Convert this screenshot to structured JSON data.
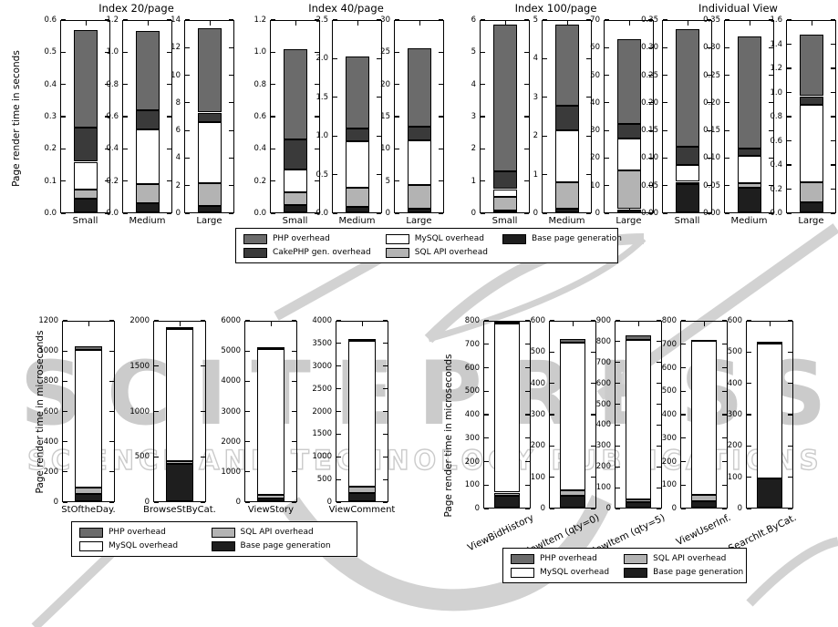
{
  "watermark": {
    "line1": "SCITEPRESS",
    "line2": "SCIENCE AND TECHNOLOGY PUBLICATIONS"
  },
  "colors": {
    "php": "#6b6b6b",
    "cake": "#3a3a3a",
    "mysql": "#ffffff",
    "sqlapi": "#b3b3b3",
    "base": "#1e1e1e",
    "axis": "#000000",
    "watermark": "#cbcbcb"
  },
  "series_labels": {
    "php": "PHP overhead",
    "cake": "CakePHP gen. overhead",
    "mysql": "MySQL overhead",
    "sqlapi": "SQL API overhead",
    "base": "Base page generation"
  },
  "chart_data": {
    "type": "bar",
    "top_row": {
      "ylabel": "Page render time in seconds",
      "stack_order": [
        "base",
        "sqlapi",
        "mysql",
        "cake",
        "php"
      ],
      "legend_order": [
        "php",
        "cake",
        "mysql",
        "sqlapi",
        "base"
      ],
      "groups": [
        {
          "title": "Index 20/page",
          "charts": [
            {
              "xlabel": "Small",
              "ymax": 0.6,
              "yticks": [
                "0.0",
                "0.1",
                "0.2",
                "0.3",
                "0.4",
                "0.5",
                "0.6"
              ],
              "values": {
                "base": 0.045,
                "sqlapi": 0.03,
                "mysql": 0.085,
                "cake": 0.105,
                "php": 0.305
              }
            },
            {
              "xlabel": "Medium",
              "ymax": 1.2,
              "yticks": [
                "0.0",
                "0.2",
                "0.4",
                "0.6",
                "0.8",
                "1.0",
                "1.2"
              ],
              "values": {
                "base": 0.06,
                "sqlapi": 0.12,
                "mysql": 0.34,
                "cake": 0.12,
                "php": 0.49
              }
            },
            {
              "xlabel": "Large",
              "ymax": 14,
              "yticks": [
                "0",
                "2",
                "4",
                "6",
                "8",
                "10",
                "12",
                "14"
              ],
              "values": {
                "base": 0.5,
                "sqlapi": 1.7,
                "mysql": 4.4,
                "cake": 0.7,
                "php": 6.1
              }
            }
          ]
        },
        {
          "title": "Index 40/page",
          "charts": [
            {
              "xlabel": "Small",
              "ymax": 1.2,
              "yticks": [
                "0.0",
                "0.2",
                "0.4",
                "0.6",
                "0.8",
                "1.0",
                "1.2"
              ],
              "values": {
                "base": 0.05,
                "sqlapi": 0.08,
                "mysql": 0.14,
                "cake": 0.19,
                "php": 0.56
              }
            },
            {
              "xlabel": "Medium",
              "ymax": 2.5,
              "yticks": [
                "0.0",
                "0.5",
                "1.0",
                "1.5",
                "2.0",
                "2.5"
              ],
              "values": {
                "base": 0.08,
                "sqlapi": 0.25,
                "mysql": 0.6,
                "cake": 0.17,
                "php": 0.93
              }
            },
            {
              "xlabel": "Large",
              "ymax": 30,
              "yticks": [
                "0",
                "5",
                "10",
                "15",
                "20",
                "25",
                "30"
              ],
              "values": {
                "base": 0.7,
                "sqlapi": 3.7,
                "mysql": 6.9,
                "cake": 2.2,
                "php": 12.1
              }
            }
          ]
        },
        {
          "title": "Index 100/page",
          "charts": [
            {
              "xlabel": "Small",
              "ymax": 6,
              "yticks": [
                "0",
                "1",
                "2",
                "3",
                "4",
                "5",
                "6"
              ],
              "values": {
                "base": 0.07,
                "sqlapi": 0.43,
                "mysql": 0.25,
                "cake": 0.55,
                "php": 4.55
              }
            },
            {
              "xlabel": "Medium",
              "ymax": 5,
              "yticks": [
                "0",
                "1",
                "2",
                "3",
                "4",
                "5"
              ],
              "values": {
                "base": 0.12,
                "sqlapi": 0.68,
                "mysql": 1.35,
                "cake": 0.63,
                "php": 2.1
              }
            },
            {
              "xlabel": "Large",
              "ymax": 70,
              "yticks": [
                "0",
                "10",
                "20",
                "30",
                "40",
                "50",
                "60",
                "70"
              ],
              "values": {
                "base": 1.5,
                "sqlapi": 14.0,
                "mysql": 11.5,
                "cake": 5.5,
                "php": 30.5
              }
            }
          ]
        },
        {
          "title": "Individual View",
          "charts": [
            {
              "xlabel": "Small",
              "ymax": 0.35,
              "yticks": [
                "0.00",
                "0.05",
                "0.10",
                "0.15",
                "0.20",
                "0.25",
                "0.30",
                "0.35"
              ],
              "values": {
                "base": 0.053,
                "sqlapi": 0.004,
                "mysql": 0.03,
                "cake": 0.033,
                "php": 0.213
              }
            },
            {
              "xlabel": "Medium",
              "ymax": 0.35,
              "yticks": [
                "0.00",
                "0.05",
                "0.10",
                "0.15",
                "0.20",
                "0.25",
                "0.30",
                "0.35"
              ],
              "values": {
                "base": 0.046,
                "sqlapi": 0.009,
                "mysql": 0.049,
                "cake": 0.014,
                "php": 0.202
              }
            },
            {
              "xlabel": "Large",
              "ymax": 1.6,
              "yticks": [
                "0.0",
                "0.2",
                "0.4",
                "0.6",
                "0.8",
                "1.0",
                "1.2",
                "1.4",
                "1.6"
              ],
              "values": {
                "base": 0.09,
                "sqlapi": 0.17,
                "mysql": 0.64,
                "cake": 0.07,
                "php": 0.51
              }
            }
          ]
        }
      ]
    },
    "bottom_left": {
      "ylabel": "Page render time in microseconds",
      "stack_order": [
        "base",
        "sqlapi",
        "mysql",
        "php"
      ],
      "legend_order": [
        "php",
        "mysql",
        "sqlapi",
        "base"
      ],
      "charts": [
        {
          "xlabel": "StOftheDay.",
          "ymax": 1200,
          "yticks": [
            "0",
            "200",
            "400",
            "600",
            "800",
            "1000",
            "1200"
          ],
          "values": {
            "base": 55,
            "sqlapi": 40,
            "mysql": 910,
            "php": 25
          }
        },
        {
          "xlabel": "BrowseStByCat.",
          "ymax": 2000,
          "yticks": [
            "0",
            "500",
            "1000",
            "1500",
            "2000"
          ],
          "values": {
            "base": 420,
            "sqlapi": 35,
            "mysql": 1460,
            "php": 5
          }
        },
        {
          "xlabel": "ViewStory",
          "ymax": 6000,
          "yticks": [
            "0",
            "1000",
            "2000",
            "3000",
            "4000",
            "5000",
            "6000"
          ],
          "values": {
            "base": 120,
            "sqlapi": 110,
            "mysql": 4840,
            "php": 10
          }
        },
        {
          "xlabel": "ViewComment",
          "ymax": 4000,
          "yticks": [
            "0",
            "500",
            "1000",
            "1500",
            "2000",
            "2500",
            "3000",
            "3500",
            "4000"
          ],
          "values": {
            "base": 200,
            "sqlapi": 150,
            "mysql": 3210,
            "php": 15
          }
        }
      ]
    },
    "bottom_right": {
      "ylabel": "Page render time in microseconds",
      "stack_order": [
        "base",
        "sqlapi",
        "mysql",
        "php"
      ],
      "legend_order": [
        "php",
        "mysql",
        "sqlapi",
        "base"
      ],
      "charts": [
        {
          "xlabel": "ViewBidHistory",
          "ymax": 800,
          "yticks": [
            "0",
            "100",
            "200",
            "300",
            "400",
            "500",
            "600",
            "700",
            "800"
          ],
          "values": {
            "base": 55,
            "sqlapi": 13,
            "mysql": 722,
            "php": 5
          }
        },
        {
          "xlabel": "ViewItem (qty=0)",
          "ymax": 600,
          "yticks": [
            "0",
            "100",
            "200",
            "300",
            "400",
            "500",
            "600"
          ],
          "values": {
            "base": 40,
            "sqlapi": 17,
            "mysql": 473,
            "php": 12
          }
        },
        {
          "xlabel": "ViewItem (qty=5)",
          "ymax": 900,
          "yticks": [
            "0",
            "100",
            "200",
            "300",
            "400",
            "500",
            "600",
            "700",
            "800",
            "900"
          ],
          "values": {
            "base": 30,
            "sqlapi": 12,
            "mysql": 766,
            "php": 22
          }
        },
        {
          "xlabel": "ViewUserInf.",
          "ymax": 800,
          "yticks": [
            "0",
            "100",
            "200",
            "300",
            "400",
            "500",
            "600",
            "700",
            "800"
          ],
          "values": {
            "base": 30,
            "sqlapi": 27,
            "mysql": 656,
            "php": 2
          }
        },
        {
          "xlabel": "SearchIt.ByCat.",
          "ymax": 600,
          "yticks": [
            "0",
            "100",
            "200",
            "300",
            "400",
            "500",
            "600"
          ],
          "values": {
            "base": 95,
            "sqlapi": 0,
            "mysql": 433,
            "php": 2
          }
        }
      ]
    }
  }
}
